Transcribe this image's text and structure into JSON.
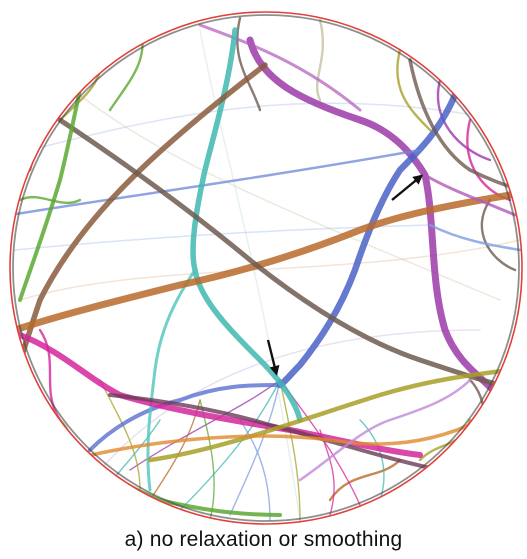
{
  "caption": "a) no relaxation or smoothing",
  "colors": {
    "disk_border": "#e0413a",
    "purple": "#9b3aa8",
    "blue": "#4a63c6",
    "teal": "#3fb7b0",
    "brown": "#8a5a3c",
    "orange_brown": "#b86a2a",
    "gray_brown": "#6e5a4f",
    "magenta": "#d4269a",
    "green": "#5aa832",
    "olive": "#a8a028",
    "light_blue": "#7f9de0",
    "arrow": "#111111"
  },
  "arrow_count": 2
}
